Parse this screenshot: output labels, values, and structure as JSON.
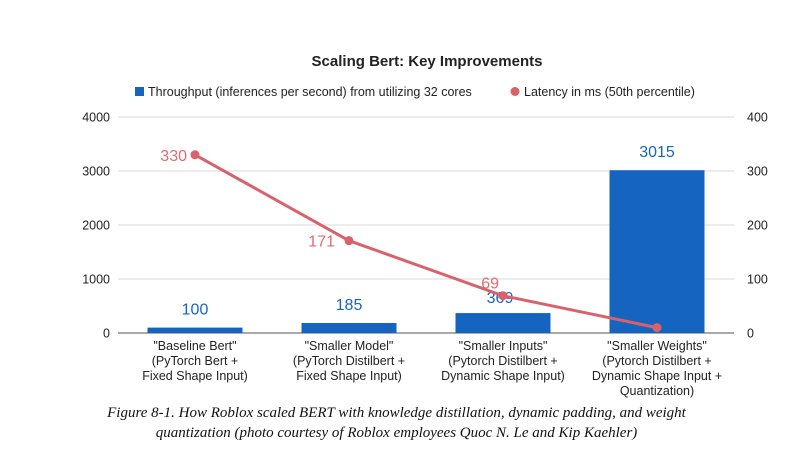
{
  "chart_data": {
    "type": "bar+line",
    "title": "Scaling Bert: Key Improvements",
    "categories": [
      [
        "\"Baseline Bert\"",
        "(PyTorch Bert +",
        "Fixed Shape Input)"
      ],
      [
        "\"Smaller Model\"",
        "(PyTorch Distilbert +",
        "Fixed Shape Input)"
      ],
      [
        "\"Smaller Inputs\"",
        "(Pytorch Distilbert +",
        "Dynamic Shape Input)"
      ],
      [
        "\"Smaller Weights\"",
        "(Pytorch Distilbert +",
        "Dynamic Shape Input +",
        "Quantization)"
      ]
    ],
    "series": [
      {
        "name": "Throughput (inferences per second) from utilizing 32 cores",
        "type": "bar",
        "axis": "left",
        "color": "#1565c0",
        "label_color": "#1565c0",
        "values": [
          100,
          185,
          369,
          3015
        ]
      },
      {
        "name": "Latency in ms (50th percentile)",
        "type": "line",
        "axis": "right",
        "color": "#d9626a",
        "label_color": "#e06b73",
        "values": [
          330,
          171,
          69,
          10
        ],
        "labels": [
          "330",
          "171",
          "69",
          ""
        ]
      }
    ],
    "y_left": {
      "min": 0,
      "max": 4000,
      "ticks": [
        0,
        1000,
        2000,
        3000,
        4000
      ]
    },
    "y_right": {
      "min": 0,
      "max": 400,
      "ticks": [
        0,
        100,
        200,
        300,
        400
      ]
    },
    "legend_position": "top",
    "grid": true
  },
  "caption": [
    "Figure 8-1. How Roblox scaled BERT with knowledge distillation, dynamic padding, and weight",
    "quantization (photo courtesy of Roblox employees Quoc N. Le and Kip Kaehler)"
  ]
}
